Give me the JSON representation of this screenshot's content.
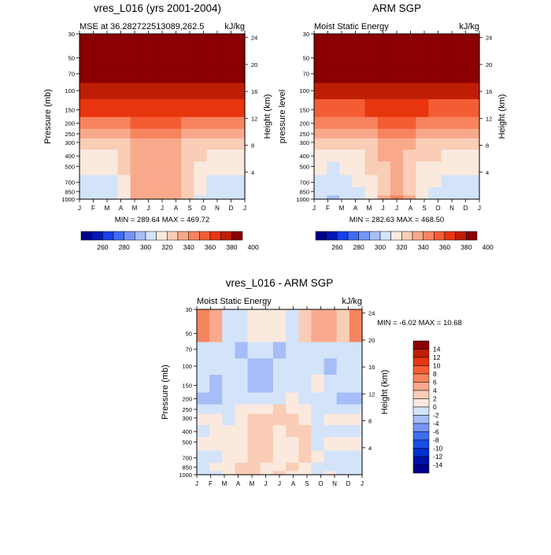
{
  "chart_data": [
    {
      "type": "heatmap",
      "title": "vres_L016 (yrs 2001-2004)",
      "subtitle_left": "MSE at 36.282722513089,262.5",
      "subtitle_right": "kJ/kg",
      "ylabel": "Pressure (mb)",
      "ylabel_right": "Height (km)",
      "x": [
        "J",
        "F",
        "M",
        "A",
        "M",
        "J",
        "J",
        "A",
        "S",
        "O",
        "N",
        "D",
        "J"
      ],
      "y_ticks": [
        "30",
        "50",
        "70",
        "100",
        "150",
        "200",
        "250",
        "300",
        "400",
        "500",
        "700",
        "850",
        "1000"
      ],
      "y_right_ticks": [
        "24",
        "20",
        "16",
        "12",
        "8",
        "4"
      ],
      "stats": "MIN = 289.64 MAX = 469.72",
      "colorbar_labels": [
        "260",
        "280",
        "300",
        "320",
        "340",
        "360",
        "380",
        "400"
      ],
      "values": [
        [
          455,
          455,
          455,
          455,
          455,
          455,
          455,
          455,
          455,
          455,
          455,
          455,
          455
        ],
        [
          395,
          395,
          395,
          395,
          396,
          397,
          397,
          396,
          395,
          395,
          395,
          395,
          395
        ],
        [
          375,
          375,
          375,
          375,
          377,
          378,
          378,
          377,
          376,
          375,
          375,
          375,
          375
        ],
        [
          360,
          360,
          360,
          361,
          363,
          365,
          366,
          364,
          361,
          360,
          360,
          360,
          360
        ],
        [
          345,
          345,
          346,
          347,
          350,
          353,
          353,
          351,
          348,
          346,
          345,
          345,
          345
        ],
        [
          332,
          332,
          333,
          335,
          340,
          342,
          343,
          342,
          338,
          334,
          332,
          332,
          332
        ],
        [
          322,
          321,
          323,
          326,
          331,
          336,
          337,
          335,
          329,
          324,
          322,
          322,
          322
        ],
        [
          318,
          316,
          318,
          323,
          331,
          337,
          337,
          334,
          328,
          320,
          317,
          317,
          318
        ],
        [
          313,
          310,
          313,
          320,
          331,
          337,
          337,
          334,
          327,
          317,
          312,
          312,
          313
        ],
        [
          308,
          305,
          309,
          317,
          331,
          337,
          337,
          334,
          326,
          314,
          307,
          307,
          308
        ],
        [
          306,
          303,
          306,
          316,
          331,
          337,
          337,
          334,
          324,
          311,
          305,
          304,
          306
        ],
        [
          303,
          301,
          304,
          314,
          331,
          338,
          339,
          336,
          322,
          308,
          302,
          302,
          303
        ]
      ]
    },
    {
      "type": "heatmap",
      "title": "ARM SGP",
      "subtitle_left": "Moist Static Energy",
      "subtitle_right": "kJ/kg",
      "ylabel": "pressure level",
      "ylabel_right": "Height (km)",
      "x": [
        "J",
        "F",
        "M",
        "A",
        "M",
        "J",
        "J",
        "A",
        "S",
        "O",
        "N",
        "D",
        "J"
      ],
      "y_ticks": [
        "30",
        "50",
        "70",
        "100",
        "150",
        "200",
        "250",
        "300",
        "400",
        "500",
        "700",
        "850",
        "1000"
      ],
      "y_right_ticks": [
        "24",
        "20",
        "16",
        "12",
        "8",
        "4"
      ],
      "stats": "MIN = 282.63 MAX = 468.50",
      "colorbar_labels": [
        "260",
        "280",
        "300",
        "320",
        "340",
        "360",
        "380",
        "400"
      ],
      "values": [
        [
          455,
          455,
          455,
          455,
          455,
          455,
          455,
          455,
          455,
          455,
          455,
          455,
          455
        ],
        [
          393,
          393,
          393,
          393,
          394,
          395,
          395,
          394,
          393,
          393,
          393,
          393,
          393
        ],
        [
          373,
          373,
          373,
          373,
          375,
          377,
          377,
          376,
          374,
          373,
          373,
          373,
          373
        ],
        [
          358,
          358,
          358,
          359,
          362,
          364,
          365,
          363,
          360,
          358,
          358,
          358,
          358
        ],
        [
          344,
          344,
          345,
          346,
          349,
          352,
          353,
          350,
          347,
          345,
          344,
          344,
          344
        ],
        [
          331,
          331,
          332,
          334,
          338,
          341,
          342,
          340,
          336,
          333,
          331,
          331,
          331
        ],
        [
          322,
          320,
          321,
          324,
          328,
          334,
          336,
          332,
          326,
          323,
          322,
          322,
          322
        ],
        [
          318,
          315,
          316,
          319,
          324,
          331,
          333,
          328,
          322,
          320,
          318,
          318,
          318
        ],
        [
          312,
          309,
          310,
          314,
          320,
          328,
          331,
          326,
          318,
          314,
          311,
          311,
          312
        ],
        [
          308,
          304,
          306,
          310,
          316,
          326,
          330,
          324,
          314,
          310,
          306,
          306,
          308
        ],
        [
          305,
          302,
          303,
          308,
          316,
          328,
          338,
          326,
          316,
          307,
          303,
          303,
          305
        ],
        [
          302,
          299,
          300,
          306,
          316,
          330,
          341,
          330,
          318,
          306,
          301,
          300,
          302
        ]
      ]
    },
    {
      "type": "heatmap",
      "title": "vres_L016 - ARM SGP",
      "subtitle_left": "Moist Static Energy",
      "subtitle_right": "kJ/kg",
      "ylabel": "Pressure (mb)",
      "ylabel_right": "Height (km)",
      "x": [
        "J",
        "F",
        "M",
        "A",
        "M",
        "J",
        "J",
        "A",
        "S",
        "O",
        "N",
        "D",
        "J"
      ],
      "y_ticks": [
        "30",
        "50",
        "70",
        "100",
        "150",
        "200",
        "250",
        "300",
        "400",
        "500",
        "700",
        "850",
        "1000"
      ],
      "y_right_ticks": [
        "24",
        "20",
        "16",
        "12",
        "8",
        "4"
      ],
      "stats": "MIN =  -6.02 MAX =  10.68",
      "colorbar_labels": [
        "14",
        "12",
        "10",
        "8",
        "6",
        "4",
        "2",
        "0",
        "-2",
        "-4",
        "-6",
        "-8",
        "-10",
        "-12",
        "-14"
      ],
      "values": [
        [
          6,
          4,
          -1,
          -2,
          0,
          1,
          0,
          -2,
          3,
          5,
          4,
          3,
          6
        ],
        [
          -1,
          -2,
          -2,
          -3,
          -2,
          -2,
          -3,
          -2,
          -2,
          -1,
          -1,
          -2,
          -1
        ],
        [
          -1,
          -2,
          -2,
          -2,
          -3,
          -4,
          -2,
          -2,
          -1,
          -2,
          -3,
          -2,
          -1
        ],
        [
          -2,
          -3,
          -2,
          -2,
          -3,
          -4,
          -2,
          -1,
          -1,
          0,
          -2,
          -2,
          -2
        ],
        [
          -3,
          -4,
          -2,
          -1,
          -2,
          -2,
          -1,
          0,
          -1,
          -1,
          -2,
          -3,
          -3
        ],
        [
          -1,
          -1,
          -1,
          0,
          1,
          1,
          2,
          1,
          1,
          -1,
          -1,
          -1,
          -1
        ],
        [
          0,
          1,
          -1,
          0,
          2,
          3,
          2,
          2,
          1,
          -1,
          0,
          0,
          0
        ],
        [
          -1,
          0,
          1,
          1,
          2,
          2,
          1,
          2,
          2,
          -1,
          -1,
          -1,
          -1
        ],
        [
          1,
          1,
          0,
          0,
          2,
          2,
          1,
          1,
          2,
          -1,
          0,
          0,
          1
        ],
        [
          -1,
          -1,
          0,
          1,
          2,
          2,
          1,
          1,
          3,
          0,
          -1,
          -1,
          -1
        ],
        [
          -1,
          0,
          1,
          2,
          2,
          1,
          1,
          2,
          1,
          -1,
          -2,
          -2,
          -1
        ],
        [
          -1,
          -1,
          1,
          2,
          3,
          1,
          2,
          1,
          1,
          -1,
          1,
          -2,
          -1
        ]
      ]
    }
  ]
}
